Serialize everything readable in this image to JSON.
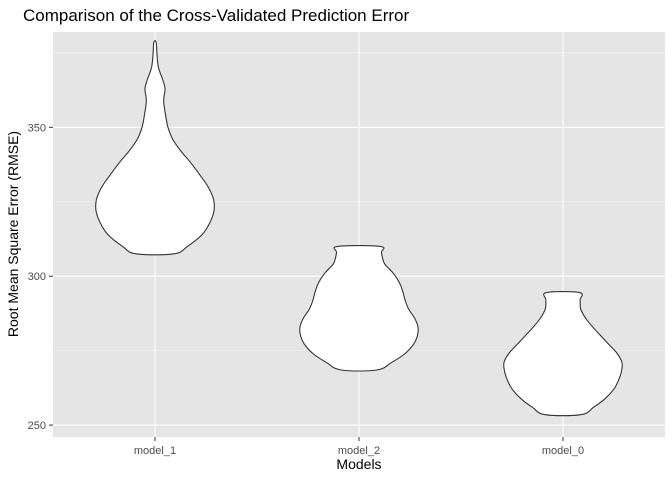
{
  "chart_data": {
    "type": "violin",
    "title": "Comparison of the Cross-Validated Prediction Error",
    "xlabel": "Models",
    "ylabel": "Root Mean Square Error (RMSE)",
    "categories": [
      "model_1",
      "model_2",
      "model_0"
    ],
    "ylim": [
      246,
      382
    ],
    "yticks": [
      250,
      300,
      350
    ],
    "grid": true,
    "legend": "none",
    "colors": {
      "panel": "#e5e5e5",
      "grid_major": "#ffffff",
      "grid_minor": "#f2f2f2",
      "violin_fill": "#ffffff",
      "violin_stroke": "#333333"
    },
    "violins": [
      {
        "category": "model_1",
        "min": 307.5,
        "max": 378.5,
        "profile": [
          [
            307.5,
            0.32
          ],
          [
            310,
            0.55
          ],
          [
            314,
            0.8
          ],
          [
            318,
            0.93
          ],
          [
            322,
            1.0
          ],
          [
            326,
            0.99
          ],
          [
            330,
            0.9
          ],
          [
            334,
            0.76
          ],
          [
            338,
            0.61
          ],
          [
            342,
            0.44
          ],
          [
            346,
            0.3
          ],
          [
            350,
            0.22
          ],
          [
            354,
            0.18
          ],
          [
            358,
            0.15
          ],
          [
            360,
            0.15
          ],
          [
            363,
            0.17
          ],
          [
            366,
            0.13
          ],
          [
            370,
            0.06
          ],
          [
            374,
            0.035
          ],
          [
            378.5,
            0.02
          ]
        ]
      },
      {
        "category": "model_2",
        "min": 268.5,
        "max": 310.0,
        "profile": [
          [
            268.5,
            0.3
          ],
          [
            271,
            0.55
          ],
          [
            274,
            0.78
          ],
          [
            277,
            0.92
          ],
          [
            280,
            0.99
          ],
          [
            283,
            1.0
          ],
          [
            286,
            0.94
          ],
          [
            289,
            0.84
          ],
          [
            292,
            0.78
          ],
          [
            295,
            0.74
          ],
          [
            298,
            0.68
          ],
          [
            301,
            0.58
          ],
          [
            304,
            0.44
          ],
          [
            306,
            0.4
          ],
          [
            308,
            0.38
          ],
          [
            310,
            0.36
          ]
        ]
      },
      {
        "category": "model_0",
        "min": 253.5,
        "max": 294.5,
        "profile": [
          [
            253.5,
            0.3
          ],
          [
            256,
            0.52
          ],
          [
            259,
            0.72
          ],
          [
            262,
            0.86
          ],
          [
            265,
            0.94
          ],
          [
            268,
            0.99
          ],
          [
            271,
            1.0
          ],
          [
            274,
            0.92
          ],
          [
            277,
            0.78
          ],
          [
            280,
            0.64
          ],
          [
            283,
            0.5
          ],
          [
            286,
            0.38
          ],
          [
            289,
            0.3
          ],
          [
            292,
            0.29
          ],
          [
            294.5,
            0.28
          ]
        ]
      }
    ]
  }
}
